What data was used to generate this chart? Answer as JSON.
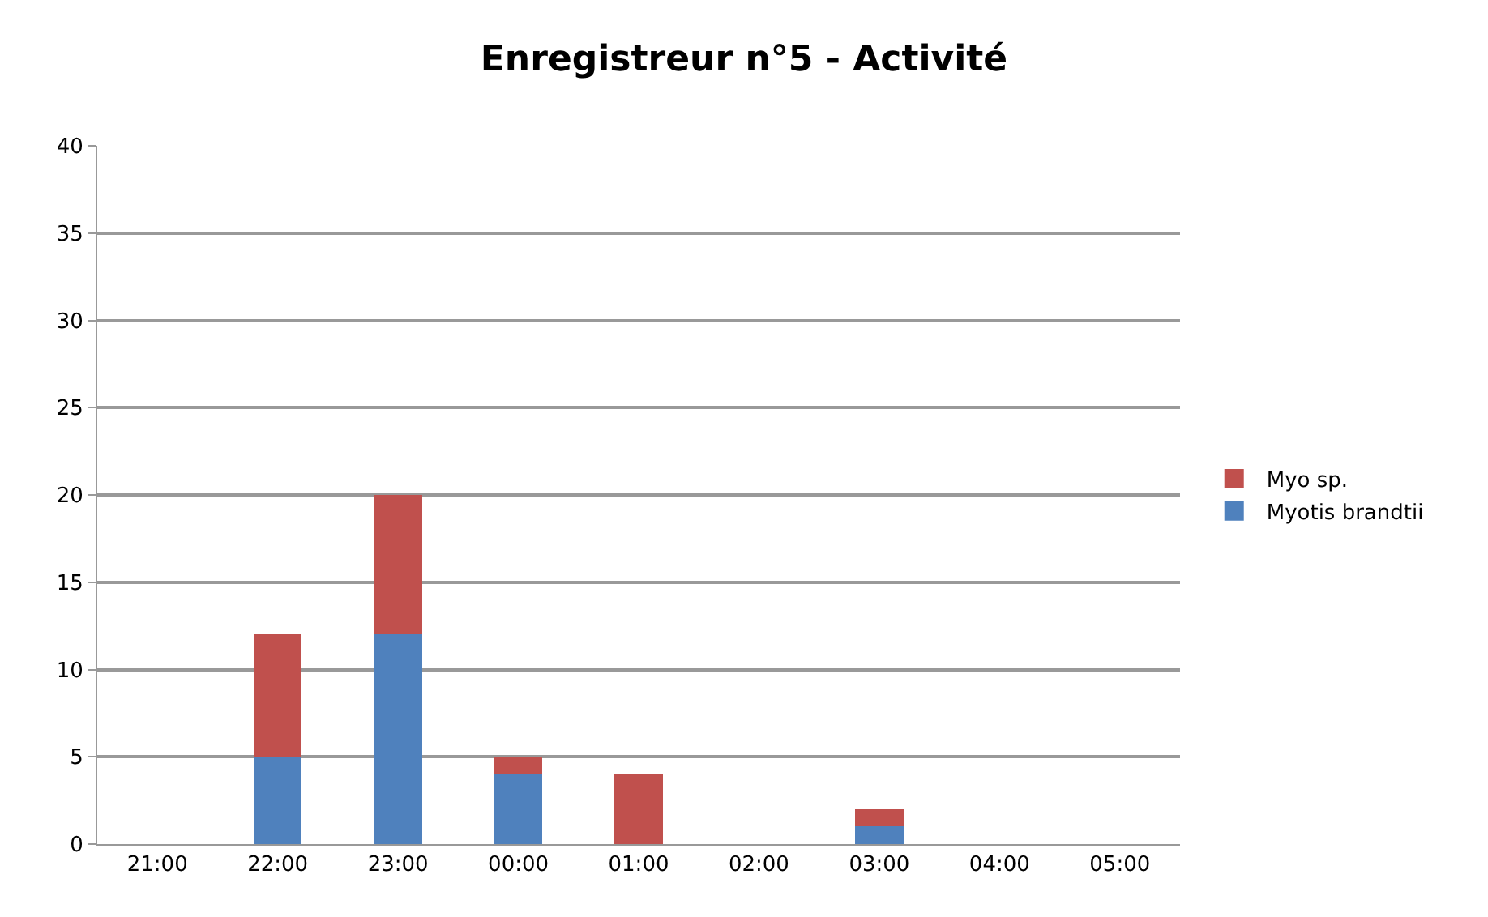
{
  "chart_data": {
    "type": "bar",
    "title": "Enregistreur n°5 - Activité",
    "stacked": true,
    "categories": [
      "21:00",
      "22:00",
      "23:00",
      "00:00",
      "01:00",
      "02:00",
      "03:00",
      "04:00",
      "05:00"
    ],
    "series": [
      {
        "name": "Myotis brandtii",
        "color": "#4f81bd",
        "values": [
          0,
          5,
          12,
          4,
          0,
          0,
          1,
          0,
          0
        ]
      },
      {
        "name": "Myo sp.",
        "color": "#c0504d",
        "values": [
          0,
          7,
          8,
          1,
          4,
          0,
          1,
          0,
          0
        ]
      }
    ],
    "ylim": [
      0,
      40
    ],
    "yticks": [
      0,
      5,
      10,
      15,
      20,
      25,
      30,
      35,
      40
    ],
    "grid": "y",
    "legend": "right"
  }
}
